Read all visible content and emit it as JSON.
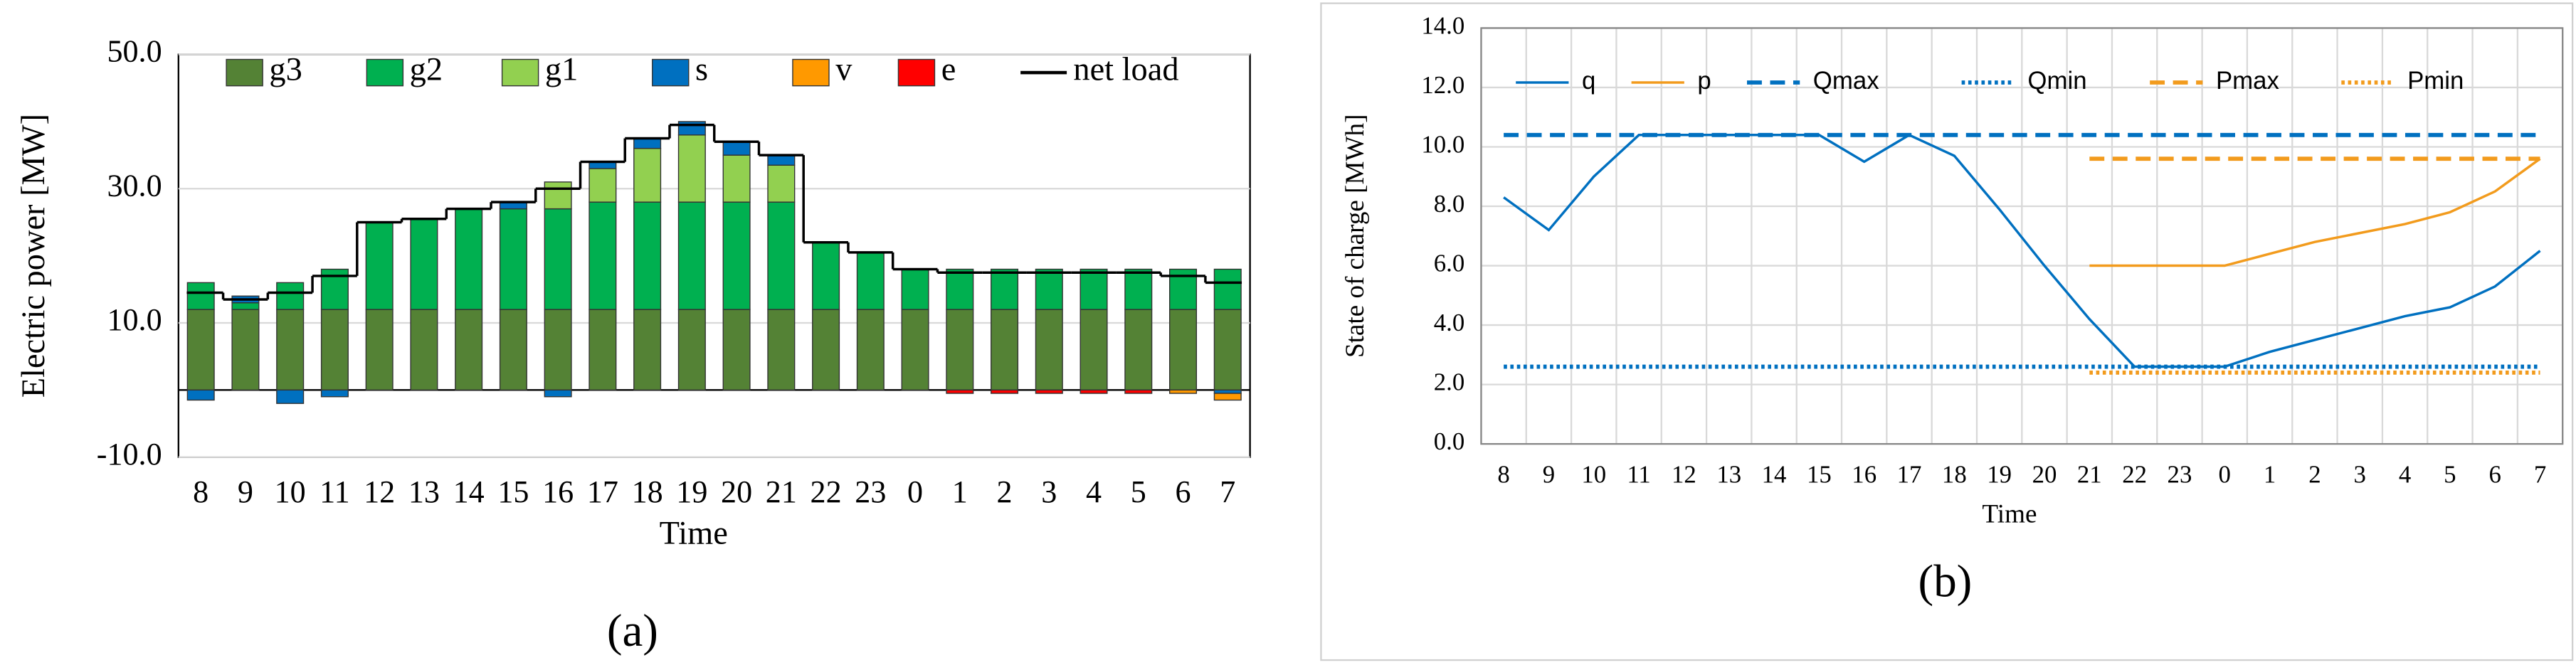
{
  "chart_data": [
    {
      "type": "bar",
      "stacked": true,
      "y_label": "Electric power [MW]",
      "x_label": "Time",
      "caption": "(a)",
      "categories": [
        "8",
        "9",
        "10",
        "11",
        "12",
        "13",
        "14",
        "15",
        "16",
        "17",
        "18",
        "19",
        "20",
        "21",
        "22",
        "23",
        "0",
        "1",
        "2",
        "3",
        "4",
        "5",
        "6",
        "7"
      ],
      "series": [
        {
          "name": "g3",
          "color": "#548235",
          "values": [
            12,
            12,
            12,
            12,
            12,
            12,
            12,
            12,
            12,
            12,
            12,
            12,
            12,
            12,
            12,
            12,
            12,
            12,
            12,
            12,
            12,
            12,
            12,
            12
          ]
        },
        {
          "name": "g2",
          "color": "#00b050",
          "values": [
            4,
            1,
            4,
            6,
            13,
            13.5,
            15,
            15,
            15,
            16,
            16,
            16,
            16,
            16,
            10,
            8.5,
            6,
            6,
            6,
            6,
            6,
            6,
            6,
            6
          ]
        },
        {
          "name": "g1",
          "color": "#92d050",
          "values": [
            0,
            0,
            0,
            0,
            0,
            0,
            0,
            0,
            4,
            5,
            8,
            10,
            7,
            5.5,
            0,
            0,
            0,
            0,
            0,
            0,
            0,
            0,
            0,
            0
          ]
        },
        {
          "name": "s",
          "color": "#0070c0",
          "values": [
            -1.5,
            1,
            -2,
            -1,
            0,
            0,
            0,
            1,
            -1,
            1,
            1.5,
            2,
            2,
            1.5,
            0,
            0,
            0,
            0,
            0,
            0,
            0,
            0,
            0,
            -0.5
          ]
        },
        {
          "name": "v",
          "color": "#ff9900",
          "values": [
            0,
            0,
            0,
            0,
            0,
            0,
            0,
            0,
            0,
            0,
            0,
            0,
            0,
            0,
            0,
            0,
            0,
            0,
            0,
            0,
            0,
            0,
            -0.5,
            -1
          ]
        },
        {
          "name": "e",
          "color": "#ff0000",
          "values": [
            0,
            0,
            0,
            0,
            0,
            0,
            0,
            0,
            0,
            0,
            0,
            0,
            0,
            0,
            0,
            0,
            0,
            -0.5,
            -0.5,
            -0.5,
            -0.5,
            -0.5,
            0,
            0
          ]
        },
        {
          "name": "net load",
          "type": "step",
          "color": "#000000",
          "values": [
            14.5,
            13.5,
            14.5,
            17,
            25,
            25.5,
            27,
            28,
            30,
            34,
            37.5,
            39.5,
            37,
            35,
            22,
            20.5,
            18,
            17.5,
            17.5,
            17.5,
            17.5,
            17.5,
            17,
            16
          ]
        }
      ],
      "ylim": [
        -10,
        50
      ],
      "yticks": [
        {
          "value": -10,
          "label": "-10.0"
        },
        {
          "value": 10,
          "label": "10.0"
        },
        {
          "value": 30,
          "label": "30.0"
        },
        {
          "value": 50,
          "label": "50.0"
        }
      ],
      "grid": true,
      "legend": "top"
    },
    {
      "type": "line",
      "y_label": "State of charge [MWh]",
      "x_label": "Time",
      "caption": "(b)",
      "categories": [
        "8",
        "9",
        "10",
        "11",
        "12",
        "13",
        "14",
        "15",
        "16",
        "17",
        "18",
        "19",
        "20",
        "21",
        "22",
        "23",
        "0",
        "1",
        "2",
        "3",
        "4",
        "5",
        "6",
        "7"
      ],
      "series": [
        {
          "name": "q",
          "color": "#0070c0",
          "dash": "solid",
          "values": [
            8.3,
            7.2,
            9.0,
            10.4,
            10.4,
            10.4,
            10.4,
            10.4,
            9.5,
            10.4,
            9.7,
            7.9,
            6.0,
            4.2,
            2.6,
            2.6,
            2.6,
            3.1,
            3.5,
            3.9,
            4.3,
            4.6,
            5.3,
            6.5
          ]
        },
        {
          "name": "p",
          "color": "#f29b1d",
          "dash": "solid",
          "values": [
            null,
            null,
            null,
            null,
            null,
            null,
            null,
            null,
            null,
            null,
            null,
            null,
            null,
            6.0,
            6.0,
            6.0,
            6.0,
            6.4,
            6.8,
            7.1,
            7.4,
            7.8,
            8.5,
            9.6
          ]
        },
        {
          "name": "Qmax",
          "color": "#0070c0",
          "dash": "dashed",
          "values": [
            10.4,
            10.4,
            10.4,
            10.4,
            10.4,
            10.4,
            10.4,
            10.4,
            10.4,
            10.4,
            10.4,
            10.4,
            10.4,
            10.4,
            10.4,
            10.4,
            10.4,
            10.4,
            10.4,
            10.4,
            10.4,
            10.4,
            10.4,
            10.4
          ]
        },
        {
          "name": "Qmin",
          "color": "#0070c0",
          "dash": "dotted",
          "values": [
            2.6,
            2.6,
            2.6,
            2.6,
            2.6,
            2.6,
            2.6,
            2.6,
            2.6,
            2.6,
            2.6,
            2.6,
            2.6,
            2.6,
            2.6,
            2.6,
            2.6,
            2.6,
            2.6,
            2.6,
            2.6,
            2.6,
            2.6,
            2.6
          ]
        },
        {
          "name": "Pmax",
          "color": "#f29b1d",
          "dash": "dashed",
          "values": [
            null,
            null,
            null,
            null,
            null,
            null,
            null,
            null,
            null,
            null,
            null,
            null,
            null,
            9.6,
            9.6,
            9.6,
            9.6,
            9.6,
            9.6,
            9.6,
            9.6,
            9.6,
            9.6,
            9.6
          ]
        },
        {
          "name": "Pmin",
          "color": "#f29b1d",
          "dash": "dotted",
          "values": [
            null,
            null,
            null,
            null,
            null,
            null,
            null,
            null,
            null,
            null,
            null,
            null,
            null,
            2.4,
            2.4,
            2.4,
            2.4,
            2.4,
            2.4,
            2.4,
            2.4,
            2.4,
            2.4,
            2.4
          ]
        }
      ],
      "ylim": [
        0,
        14
      ],
      "yticks": [
        {
          "value": 0,
          "label": "0.0"
        },
        {
          "value": 2,
          "label": "2.0"
        },
        {
          "value": 4,
          "label": "4.0"
        },
        {
          "value": 6,
          "label": "6.0"
        },
        {
          "value": 8,
          "label": "8.0"
        },
        {
          "value": 10,
          "label": "10.0"
        },
        {
          "value": 12,
          "label": "12.0"
        },
        {
          "value": 14,
          "label": "14.0"
        }
      ],
      "grid": true,
      "legend": "top"
    }
  ]
}
